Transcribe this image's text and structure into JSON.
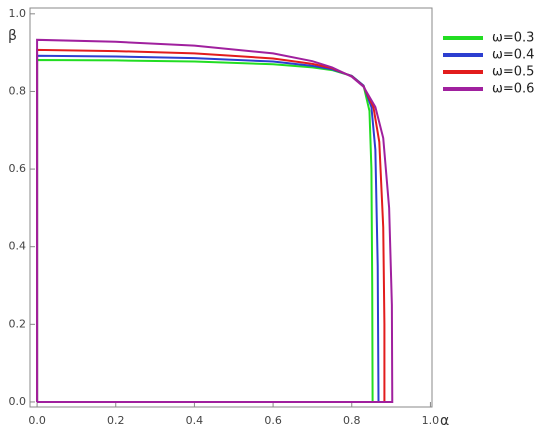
{
  "chart_data": {
    "type": "line",
    "x_label": "α",
    "y_label": "β",
    "xlim": [
      -0.018,
      1.004
    ],
    "ylim": [
      -0.013,
      1.015
    ],
    "xticks": [
      {
        "value": 0,
        "label": "0.0"
      },
      0.2,
      0.4,
      0.6,
      0.8,
      {
        "value": 1,
        "label": "1.0"
      }
    ],
    "yticks": [
      {
        "value": 0,
        "label": "0.0"
      },
      0.2,
      0.4,
      0.6,
      0.8,
      {
        "value": 1,
        "label": "1.0"
      }
    ],
    "legend": "right",
    "series": [
      {
        "name": "ω=0.3",
        "color": "#22dd22",
        "x": [
          0,
          0,
          0.2,
          0.4,
          0.6,
          0.7,
          0.75,
          0.8,
          0.83,
          0.845,
          0.85,
          0.852,
          0.853,
          0
        ],
        "values": [
          0,
          0.881,
          0.88,
          0.877,
          0.87,
          0.862,
          0.855,
          0.84,
          0.815,
          0.75,
          0.6,
          0.3,
          0,
          0
        ]
      },
      {
        "name": "ω=0.4",
        "color": "#2c3ed0",
        "x": [
          0,
          0,
          0.2,
          0.4,
          0.6,
          0.7,
          0.75,
          0.8,
          0.83,
          0.85,
          0.86,
          0.866,
          0.868,
          0
        ],
        "values": [
          0,
          0.892,
          0.89,
          0.886,
          0.877,
          0.866,
          0.857,
          0.84,
          0.815,
          0.76,
          0.65,
          0.35,
          0,
          0
        ]
      },
      {
        "name": "ω=0.5",
        "color": "#e21c1c",
        "x": [
          0,
          0,
          0.2,
          0.4,
          0.6,
          0.7,
          0.75,
          0.8,
          0.83,
          0.855,
          0.87,
          0.88,
          0.883,
          0.883,
          0
        ],
        "values": [
          0,
          0.907,
          0.904,
          0.898,
          0.885,
          0.871,
          0.86,
          0.839,
          0.813,
          0.76,
          0.67,
          0.45,
          0.2,
          0,
          0
        ]
      },
      {
        "name": "ω=0.6",
        "color": "#a0209e",
        "x": [
          0,
          0,
          0.2,
          0.4,
          0.6,
          0.7,
          0.75,
          0.8,
          0.83,
          0.86,
          0.88,
          0.895,
          0.902,
          0.903,
          0
        ],
        "values": [
          0,
          0.933,
          0.928,
          0.918,
          0.898,
          0.878,
          0.862,
          0.838,
          0.812,
          0.76,
          0.68,
          0.5,
          0.25,
          0,
          0
        ]
      }
    ]
  }
}
